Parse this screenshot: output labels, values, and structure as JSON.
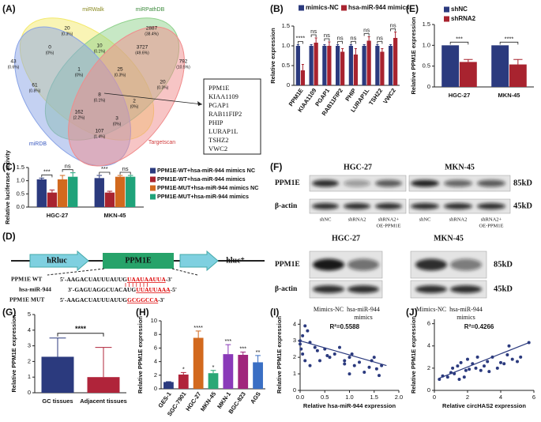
{
  "venn": {
    "label": "(A)",
    "sets": [
      "miRWalk",
      "miRPathDB",
      "miRDB",
      "Targetscan"
    ],
    "regions": [
      {
        "count": 20,
        "percent": "(0.3%)"
      },
      {
        "count": 2887,
        "percent": "(38.4%)"
      },
      {
        "count": 43,
        "percent": "(0.6%)"
      },
      {
        "count": 792,
        "percent": "(10.5%)"
      },
      {
        "count": 0,
        "percent": "(0%)"
      },
      {
        "count": 10,
        "percent": "(0.1%)"
      },
      {
        "count": 3727,
        "percent": "(49.6%)"
      },
      {
        "count": 1,
        "percent": "(0%)"
      },
      {
        "count": 25,
        "percent": "(0.3%)"
      },
      {
        "count": 20,
        "percent": "(0.3%)"
      },
      {
        "count": 61,
        "percent": "(0.8%)"
      },
      {
        "count": 8,
        "percent": "(0.1%)"
      },
      {
        "count": 2,
        "percent": "(0%)"
      },
      {
        "count": 162,
        "percent": "(2.2%)"
      },
      {
        "count": 3,
        "percent": "(0%)"
      },
      {
        "count": 107,
        "percent": "(1.4%)"
      }
    ],
    "genes": [
      "PPM1E",
      "KIAA1109",
      "PGAP1",
      "RAB11FIP2",
      "PHIP",
      "LURAP1L",
      "TSHZ2",
      "VWC2"
    ]
  },
  "chart_data": [
    {
      "type": "bar",
      "label": "(B)",
      "ylabel": "Relative expression",
      "categories": [
        "PPM1E",
        "KIAA1109",
        "PGAP1",
        "RAB11FIP2",
        "PHIP",
        "LURAP1L",
        "TSHZ2",
        "VWC2"
      ],
      "series": [
        {
          "name": "mimics-NC",
          "color": "#2b3a7e",
          "values": [
            1,
            1,
            1,
            1,
            1,
            1,
            1,
            1
          ],
          "errors": [
            0.03,
            0.03,
            0.03,
            0.03,
            0.03,
            0.03,
            0.03,
            0.03
          ]
        },
        {
          "name": "hsa-miR-944 mimics",
          "color": "#a8232f",
          "values": [
            0.38,
            1.08,
            1,
            0.85,
            0.78,
            1.13,
            0.85,
            1.2
          ],
          "errors": [
            0.15,
            0.12,
            0.1,
            0.08,
            0.15,
            0.1,
            0.08,
            0.15
          ]
        }
      ],
      "annotations": [
        "****",
        "ns",
        "ns",
        "ns",
        "ns",
        "ns",
        "ns",
        "ns"
      ],
      "ylim": [
        0,
        1.5
      ],
      "yticks": [
        0,
        0.5,
        {
          "value": 1,
          "label": "1.0"
        },
        1.5
      ]
    },
    {
      "type": "bar",
      "label": "(C)",
      "ylabel": "Relative luciferase activity",
      "categories": [
        "HGC-27",
        "MKN-45"
      ],
      "series": [
        {
          "name": "PPM1E-WT+hsa-miR-944 mimics NC",
          "color": "#2b3a7e",
          "values": [
            1.05,
            1.1
          ],
          "errors": [
            0.05,
            0.1
          ]
        },
        {
          "name": "PPM1E-WT+hsa-miR-944 mimics",
          "color": "#a8232f",
          "values": [
            0.55,
            0.55
          ],
          "errors": [
            0.1,
            0.05
          ]
        },
        {
          "name": "PPM1E-MUT+hsa-miR-944 mimics NC",
          "color": "#d2691e",
          "values": [
            1.05,
            1.15
          ],
          "errors": [
            0.15,
            0.05
          ]
        },
        {
          "name": "PPM1E-MUT+hsa-miR-944 mimics",
          "color": "#1fa37a",
          "values": [
            1.15,
            1.15
          ],
          "errors": [
            0.15,
            0.05
          ]
        }
      ],
      "annotations": [
        [
          "***",
          "ns"
        ],
        [
          "***",
          "ns"
        ]
      ],
      "ylim": [
        0,
        1.5
      ],
      "yticks": [
        {
          "value": 0,
          "label": "0.0"
        },
        0.5,
        {
          "value": 1,
          "label": "1.0"
        },
        1.5
      ]
    },
    {
      "type": "bar",
      "label": "(E)",
      "ylabel": "Relative PPM1E expression",
      "categories": [
        "HGC-27",
        "MKN-45"
      ],
      "series": [
        {
          "name": "shNC",
          "color": "#2b3a7e",
          "values": [
            1,
            1
          ],
          "errors": [
            0,
            0
          ]
        },
        {
          "name": "shRNA2",
          "color": "#a8232f",
          "values": [
            0.6,
            0.54
          ],
          "errors": [
            0.06,
            0.12
          ]
        }
      ],
      "annotations": [
        "***",
        "****"
      ],
      "ylim": [
        0,
        1.5
      ],
      "yticks": [
        0,
        0.5,
        {
          "value": 1,
          "label": "1.0"
        },
        1.5
      ]
    },
    {
      "type": "bar",
      "label": "(G)",
      "ylabel": "Relative PPM1E expression",
      "categories": [
        "GC tissues",
        "Adjacent tissues"
      ],
      "values": [
        2.3,
        1
      ],
      "errors": [
        1.2,
        1.9
      ],
      "colors": [
        "#2b3a7e",
        "#b0243a"
      ],
      "significance": "****",
      "ylim": [
        0,
        5
      ],
      "yticks": [
        0,
        1,
        2,
        3,
        4,
        5
      ]
    },
    {
      "type": "bar",
      "label": "(H)",
      "ylabel": "Relative PPM1E expression",
      "categories": [
        "GES-1",
        "SGC-7901",
        "HGC-27",
        "MKN-45",
        "MKN-1",
        "BGC-823",
        "AGS"
      ],
      "values": [
        1,
        2.1,
        7.5,
        2.3,
        5.1,
        5,
        3.9
      ],
      "errors": [
        0.05,
        0.3,
        1,
        0.4,
        1.4,
        0.4,
        1
      ],
      "colors": [
        "#2b3a7e",
        "#b0243a",
        "#d2691e",
        "#2aa876",
        "#8a3ab9",
        "#a0267c",
        "#3a6fc4"
      ],
      "annotations": [
        null,
        "*",
        "****",
        "*",
        "***",
        "***",
        "**"
      ],
      "ylim": [
        0,
        10
      ],
      "yticks": [
        0,
        2,
        4,
        6,
        8,
        10
      ]
    },
    {
      "type": "scatter",
      "label": "(I)",
      "ylabel": "Relative PPM1E expression",
      "xlabel": "Relative hsa-miR-944 expression",
      "annotation": "R²=0.5588",
      "color": "#2b3a7e",
      "x": [
        0,
        0,
        0.02,
        0.05,
        0.05,
        0.1,
        0.1,
        0.15,
        0.2,
        0.2,
        0.3,
        0.35,
        0.4,
        0.5,
        0.55,
        0.6,
        0.7,
        0.8,
        0.9,
        1,
        1.05,
        1.1,
        1.2,
        1.3,
        1.4,
        1.45,
        1.5,
        1.55,
        1.6,
        1.65,
        0.9,
        1
      ],
      "y": [
        3,
        2.8,
        2.5,
        2.2,
        3.3,
        3.9,
        1.8,
        3.6,
        1.5,
        2.9,
        2.6,
        2.4,
        1.8,
        2.5,
        2.1,
        2,
        2.2,
        2.6,
        1.8,
        2,
        2.2,
        1.5,
        1.7,
        1.1,
        1.4,
        1.8,
        2,
        1.3,
        0.9,
        1.5,
        1.6,
        1
      ],
      "trend_x": [
        0,
        1.75
      ],
      "trend_y": [
        3,
        1.5
      ],
      "xlim": [
        0,
        2
      ],
      "ylim": [
        0,
        4.3
      ],
      "xticks": [
        {
          "value": 0,
          "label": "0.0"
        },
        0.5,
        {
          "value": 1,
          "label": "1.0"
        },
        1.5,
        {
          "value": 2,
          "label": "2.0"
        }
      ],
      "yticks": [
        0,
        1,
        2,
        3,
        4
      ]
    },
    {
      "type": "scatter",
      "label": "(J)",
      "ylabel": "Relative PPM1E expression",
      "xlabel": "Relative circHAS2 expression",
      "annotation": "R²=0.4266",
      "color": "#2b3a7e",
      "x": [
        0.3,
        0.5,
        0.8,
        1,
        1.1,
        1.2,
        1.4,
        1.5,
        1.6,
        1.8,
        1.9,
        2,
        2.1,
        2.3,
        2.5,
        2.6,
        2.8,
        3,
        3.2,
        3.3,
        3.5,
        3.8,
        4,
        4.2,
        4.4,
        4.5,
        4.7,
        5,
        5.2,
        5.7
      ],
      "y": [
        1,
        1.3,
        1.2,
        1.6,
        2,
        1.5,
        2.2,
        1,
        2.5,
        1.2,
        1.8,
        2.8,
        1.9,
        2.4,
        2,
        3,
        1.8,
        2.2,
        2.6,
        1.7,
        3,
        2,
        2.5,
        2.4,
        3.2,
        4,
        2.8,
        2.6,
        3,
        4.3
      ],
      "trend_x": [
        0.3,
        5.7
      ],
      "trend_y": [
        1.1,
        4.3
      ],
      "xlim": [
        0,
        6
      ],
      "ylim": [
        0,
        6.4
      ],
      "xticks": [
        0,
        2,
        4,
        6
      ],
      "yticks": [
        0,
        2,
        4,
        6
      ]
    }
  ],
  "schematic": {
    "label": "(D)",
    "elements": [
      "hRluc",
      "PPM1E",
      "hluc⁺"
    ],
    "wt_label": "PPM1E WT",
    "wt_seq": [
      "5'-AAGACUAUUUAUUG",
      "UAAUAAUUA",
      "-3'"
    ],
    "mir_label": "hsa-miR-944",
    "mir_seq": [
      "3'-GAGUAGGCUACAUG",
      "UUAUUAAA",
      "-5'"
    ],
    "mut_label": "PPM1E MUT",
    "mut_seq": [
      "5'-AAGACUAUUUAUUG",
      "GCGGCCA",
      "-3'"
    ]
  },
  "blots": {
    "label": "(F)",
    "panels": [
      {
        "cell_lines": [
          "HGC-27",
          "MKN-45"
        ],
        "rows": [
          "PPM1E",
          "β-actin"
        ],
        "sizes": [
          "85kD",
          "45kD"
        ],
        "lanes": [
          [
            "shNC"
          ],
          [
            "shRNA2"
          ],
          [
            "shRNA2+",
            "OE-PPM1E"
          ]
        ]
      },
      {
        "cell_lines": [
          "HGC-27",
          "MKN-45"
        ],
        "rows": [
          "PPM1E",
          "β-actin"
        ],
        "sizes": [
          "85kD",
          "45kD"
        ],
        "lanes": [
          [
            "Mimics-NC"
          ],
          [
            "hsa-miR-944",
            "mimics"
          ]
        ]
      }
    ]
  }
}
